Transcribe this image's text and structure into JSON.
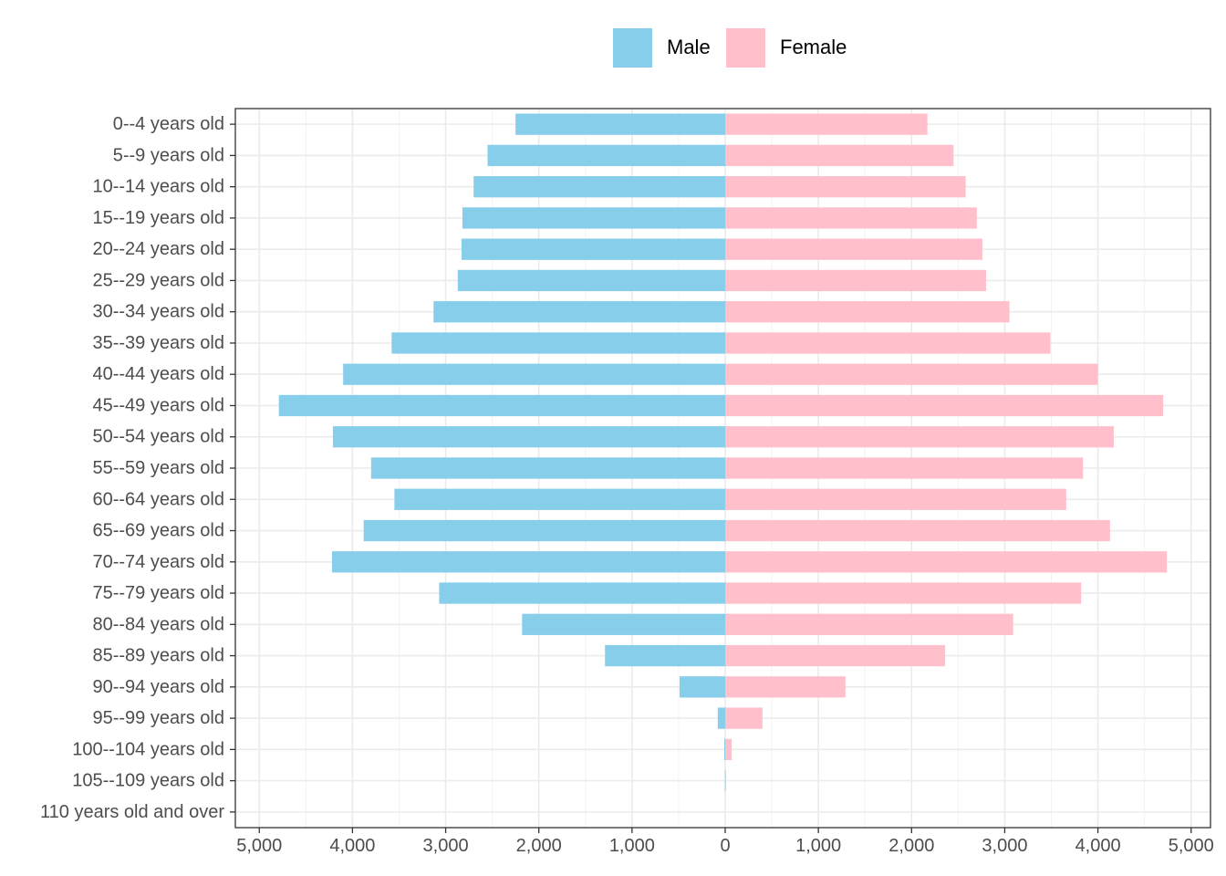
{
  "legend": {
    "items": [
      {
        "label": "Male",
        "color": "#87CEEB"
      },
      {
        "label": "Female",
        "color": "#FFC0CB"
      }
    ]
  },
  "chart_data": {
    "type": "bar",
    "orientation": "horizontal",
    "layout": "population-pyramid",
    "title": "",
    "xlabel": "",
    "ylabel": "",
    "xlim": [
      -5000,
      5000
    ],
    "x_ticks": [
      -5000,
      -4000,
      -3000,
      -2000,
      -1000,
      0,
      1000,
      2000,
      3000,
      4000,
      5000
    ],
    "x_tick_labels": [
      "5,000",
      "4,000",
      "3,000",
      "2,000",
      "1,000",
      "0",
      "1,000",
      "2,000",
      "3,000",
      "4,000",
      "5,000"
    ],
    "grid": true,
    "legend_position": "top",
    "categories": [
      "0--4 years old",
      "5--9 years old",
      "10--14 years old",
      "15--19 years old",
      "20--24 years old",
      "25--29 years old",
      "30--34 years old",
      "35--39 years old",
      "40--44 years old",
      "45--49 years old",
      "50--54 years old",
      "55--59 years old",
      "60--64 years old",
      "65--69 years old",
      "70--74 years old",
      "75--79 years old",
      "80--84 years old",
      "85--89 years old",
      "90--94 years old",
      "95--99 years old",
      "100--104 years old",
      "105--109 years old",
      "110 years old and over"
    ],
    "series": [
      {
        "name": "Male",
        "color": "#87CEEB",
        "values": [
          2250,
          2550,
          2700,
          2820,
          2830,
          2870,
          3130,
          3580,
          4100,
          4790,
          4210,
          3800,
          3550,
          3880,
          4220,
          3070,
          2180,
          1290,
          490,
          80,
          10,
          3,
          0
        ]
      },
      {
        "name": "Female",
        "color": "#FFC0CB",
        "values": [
          2170,
          2450,
          2580,
          2700,
          2760,
          2800,
          3050,
          3490,
          4000,
          4700,
          4170,
          3840,
          3660,
          4130,
          4740,
          3820,
          3090,
          2360,
          1290,
          400,
          70,
          10,
          0
        ]
      }
    ]
  }
}
